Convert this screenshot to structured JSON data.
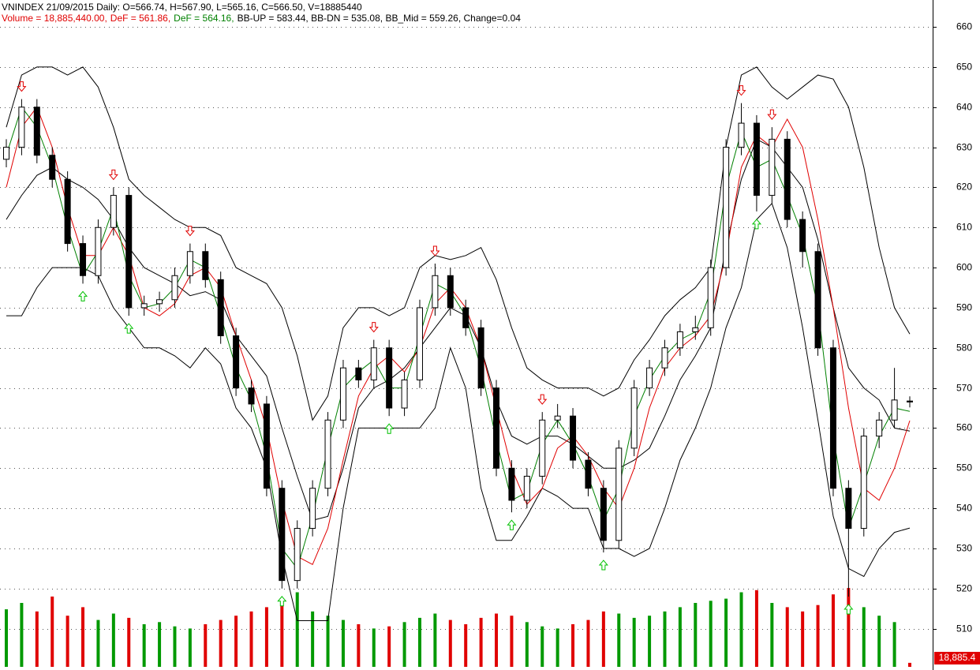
{
  "chart_data": {
    "type": "candlestick",
    "title": "VNINDEX 21/09/2015 Daily: O=566.74, H=567.90, L=565.16, C=566.50, V=18885440",
    "subtitle_parts": [
      {
        "text": "Volume = 18,885,440.00,",
        "color": "#e00000"
      },
      {
        "text": "DeF = 561.86,",
        "color": "#e00000"
      },
      {
        "text": "DeF = 564.16,",
        "color": "#008000"
      },
      {
        "text": "BB-UP = 583.44, BB-DN = 535.08, BB_Mid = 559.26, Change=0.04",
        "color": "#000000"
      }
    ],
    "ylim": [
      499.7,
      666.7
    ],
    "yticks": [
      510,
      520,
      530,
      540,
      550,
      560,
      570,
      580,
      590,
      600,
      610,
      620,
      630,
      640,
      650,
      660
    ],
    "grid": true,
    "up_color": "#ffffff",
    "down_color": "#000000",
    "candles": {
      "open": [
        627,
        630,
        640,
        628,
        622,
        606,
        598,
        610,
        618,
        590,
        591,
        592,
        598,
        604,
        597,
        583,
        570,
        566,
        545,
        522,
        535,
        545,
        562,
        575,
        572,
        580,
        565,
        572,
        590,
        598,
        590,
        585,
        570,
        550,
        542,
        548,
        562,
        563,
        552,
        545,
        532,
        555,
        570,
        575,
        580,
        584,
        585,
        600,
        630,
        636,
        618,
        632,
        612,
        604,
        580,
        545,
        535,
        558,
        562,
        566.74
      ],
      "high": [
        632,
        642,
        642,
        630,
        624,
        608,
        612,
        620,
        620,
        593,
        594,
        600,
        606,
        606,
        599,
        585,
        572,
        568,
        547,
        537,
        547,
        564,
        577,
        577,
        582,
        582,
        574,
        592,
        601,
        600,
        592,
        587,
        572,
        552,
        550,
        564,
        566,
        565,
        554,
        547,
        557,
        572,
        577,
        582,
        586,
        588,
        602,
        632,
        641,
        638,
        635,
        634,
        614,
        606,
        582,
        547,
        560,
        564,
        575,
        567.9
      ],
      "low": [
        625,
        628,
        626,
        620,
        604,
        596,
        596,
        608,
        588,
        588,
        589,
        590,
        596,
        595,
        581,
        568,
        564,
        543,
        520,
        520,
        533,
        543,
        560,
        570,
        570,
        563,
        563,
        570,
        588,
        588,
        583,
        568,
        548,
        539,
        540,
        546,
        560,
        550,
        543,
        529,
        530,
        553,
        568,
        573,
        578,
        582,
        583,
        598,
        628,
        614,
        616,
        610,
        600,
        578,
        543,
        518,
        533,
        555,
        560,
        565.16
      ],
      "close": [
        630,
        640,
        628,
        622,
        606,
        598,
        610,
        618,
        590,
        591,
        592,
        598,
        604,
        597,
        583,
        570,
        566,
        545,
        522,
        535,
        545,
        562,
        575,
        572,
        580,
        565,
        572,
        590,
        598,
        590,
        585,
        570,
        550,
        542,
        548,
        562,
        563,
        552,
        545,
        532,
        555,
        570,
        575,
        580,
        584,
        585,
        600,
        630,
        636,
        618,
        632,
        612,
        604,
        580,
        545,
        535,
        558,
        562,
        567,
        566.5
      ]
    },
    "series": [
      {
        "color": "#000000",
        "values": [
          635,
          648,
          650,
          650,
          648,
          650,
          645,
          635,
          622,
          618,
          615,
          612,
          610,
          610,
          608,
          600,
          598,
          596,
          590,
          578,
          562,
          568,
          585,
          590,
          590,
          588,
          590,
          600,
          603,
          602,
          603,
          605,
          597,
          585,
          575,
          572,
          570,
          570,
          570,
          568,
          570,
          577,
          582,
          588,
          592,
          595,
          600,
          630,
          648,
          650,
          645,
          642,
          645,
          648,
          647,
          640,
          625,
          605,
          590,
          583.44
        ]
      },
      {
        "color": "#000000",
        "values": [
          588,
          588,
          595,
          600,
          600,
          600,
          598,
          590,
          585,
          580,
          580,
          578,
          575,
          580,
          576,
          565,
          560,
          550,
          528,
          512,
          512,
          512,
          540,
          560,
          560,
          560,
          560,
          560,
          565,
          580,
          570,
          545,
          532,
          532,
          538,
          545,
          543,
          540,
          540,
          530,
          530,
          528,
          530,
          540,
          552,
          560,
          570,
          585,
          595,
          612,
          616,
          605,
          585,
          562,
          538,
          525,
          523,
          530,
          534,
          535.08
        ]
      },
      {
        "color": "#000000",
        "values": [
          612,
          618,
          623,
          625,
          622,
          620,
          617,
          612,
          605,
          600,
          598,
          596,
          593,
          594,
          592,
          583,
          578,
          573,
          560,
          548,
          537,
          538,
          550,
          565,
          570,
          572,
          575,
          580,
          585,
          590,
          588,
          580,
          567,
          558,
          556,
          558,
          558,
          556,
          553,
          550,
          550,
          552,
          555,
          563,
          572,
          578,
          585,
          605,
          622,
          632,
          630,
          625,
          620,
          607,
          590,
          575,
          570,
          567,
          560,
          559.26
        ]
      },
      {
        "color": "#e00000",
        "values": [
          620,
          635,
          640,
          630,
          615,
          603,
          603,
          610,
          603,
          590,
          588,
          591,
          598,
          600,
          595,
          583,
          572,
          560,
          542,
          528,
          526,
          535,
          552,
          568,
          575,
          578,
          574,
          580,
          591,
          595,
          590,
          580,
          565,
          550,
          541,
          545,
          555,
          558,
          553,
          545,
          540,
          550,
          565,
          575,
          580,
          583,
          588,
          603,
          625,
          633,
          630,
          637,
          630,
          612,
          590,
          565,
          545,
          542,
          550,
          561.86
        ]
      },
      {
        "color": "#008000",
        "values": [
          628,
          640,
          635,
          625,
          610,
          598,
          604,
          615,
          598,
          590,
          591,
          595,
          602,
          600,
          588,
          575,
          567,
          553,
          530,
          525,
          538,
          555,
          570,
          574,
          577,
          570,
          570,
          583,
          596,
          594,
          588,
          575,
          557,
          542,
          544,
          556,
          562,
          556,
          548,
          537,
          545,
          563,
          572,
          578,
          582,
          584,
          594,
          620,
          634,
          625,
          627,
          618,
          608,
          590,
          558,
          535,
          546,
          558,
          565,
          564.16
        ]
      }
    ],
    "signals": {
      "sell": [
        1,
        7,
        12,
        24,
        28,
        35,
        48,
        50
      ],
      "buy": [
        5,
        8,
        18,
        25,
        33,
        39,
        49,
        55
      ],
      "sell_color": "#e00000",
      "buy_color": "#00c000"
    },
    "volume": {
      "ylim": [
        0,
        500000
      ],
      "up_color": "#009900",
      "down_color": "#e00000",
      "values": [
        270000,
        300000,
        260000,
        330000,
        240000,
        280000,
        220000,
        250000,
        230000,
        200000,
        210000,
        190000,
        180000,
        200000,
        220000,
        240000,
        260000,
        280000,
        300000,
        350000,
        260000,
        240000,
        220000,
        200000,
        180000,
        190000,
        210000,
        230000,
        250000,
        220000,
        200000,
        230000,
        250000,
        240000,
        210000,
        190000,
        180000,
        200000,
        220000,
        260000,
        250000,
        230000,
        240000,
        260000,
        280000,
        300000,
        310000,
        320000,
        350000,
        360000,
        300000,
        280000,
        260000,
        290000,
        340000,
        370000,
        280000,
        240000,
        210000,
        18885.4
      ],
      "last_value_label": "18,885.4"
    }
  }
}
